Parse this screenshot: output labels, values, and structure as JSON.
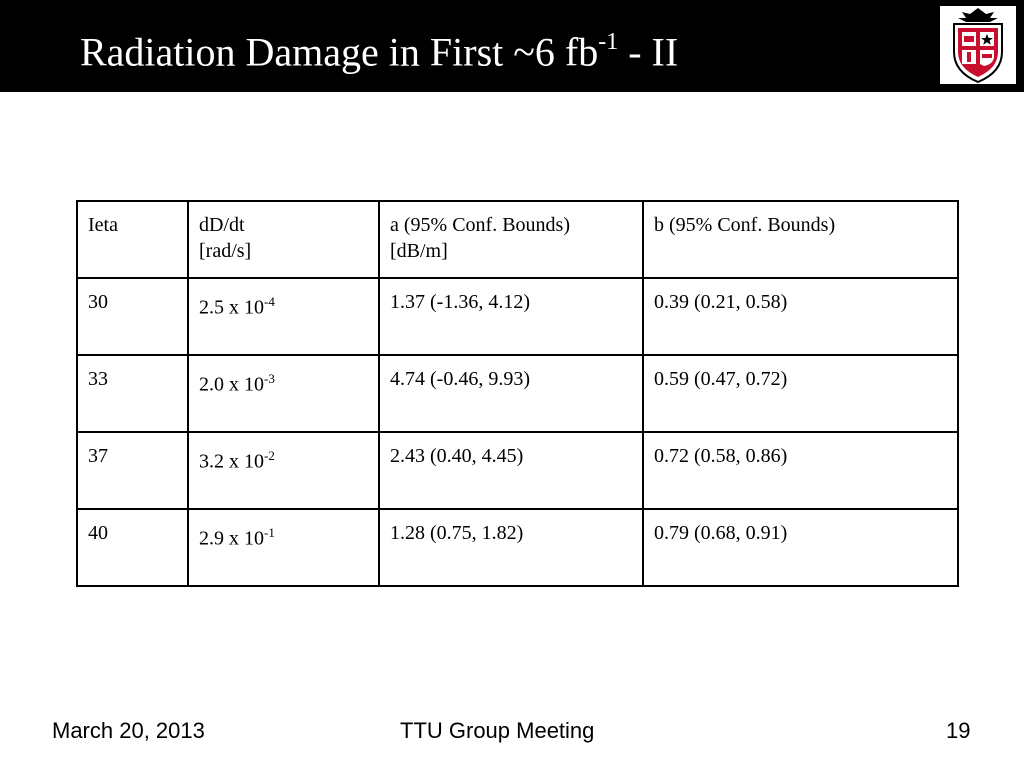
{
  "slide": {
    "title_main": "Radiation Damage in First ~6 fb",
    "title_sup": "-1",
    "title_tail": " - II"
  },
  "logo": {
    "icon": "ttu-shield-logo",
    "colors": {
      "red": "#c8102e",
      "black": "#000000",
      "white": "#ffffff"
    }
  },
  "table": {
    "header": {
      "ieta": "Ieta",
      "dddt_line1": "dD/dt",
      "dddt_line2": "[rad/s]",
      "a_line1": "a (95% Conf. Bounds)",
      "a_line2": "[dB/m]",
      "b": "b (95% Conf. Bounds)"
    },
    "rows": [
      {
        "ieta": "30",
        "dddt_base": "2.5 x 10",
        "dddt_exp": "-4",
        "a": "1.37 (-1.36, 4.12)",
        "b": "0.39 (0.21, 0.58)"
      },
      {
        "ieta": "33",
        "dddt_base": "2.0 x 10",
        "dddt_exp": "-3",
        "a": "4.74 (-0.46, 9.93)",
        "b": "0.59 (0.47, 0.72)"
      },
      {
        "ieta": "37",
        "dddt_base": "3.2 x 10",
        "dddt_exp": "-2",
        "a": "2.43 (0.40, 4.45)",
        "b": "0.72 (0.58, 0.86)"
      },
      {
        "ieta": "40",
        "dddt_base": "2.9 x 10",
        "dddt_exp": "-1",
        "a": "1.28 (0.75, 1.82)",
        "b": "0.79 (0.68, 0.91)"
      }
    ]
  },
  "footer": {
    "date": "March 20, 2013",
    "center": "TTU Group Meeting",
    "page_number": "19"
  }
}
